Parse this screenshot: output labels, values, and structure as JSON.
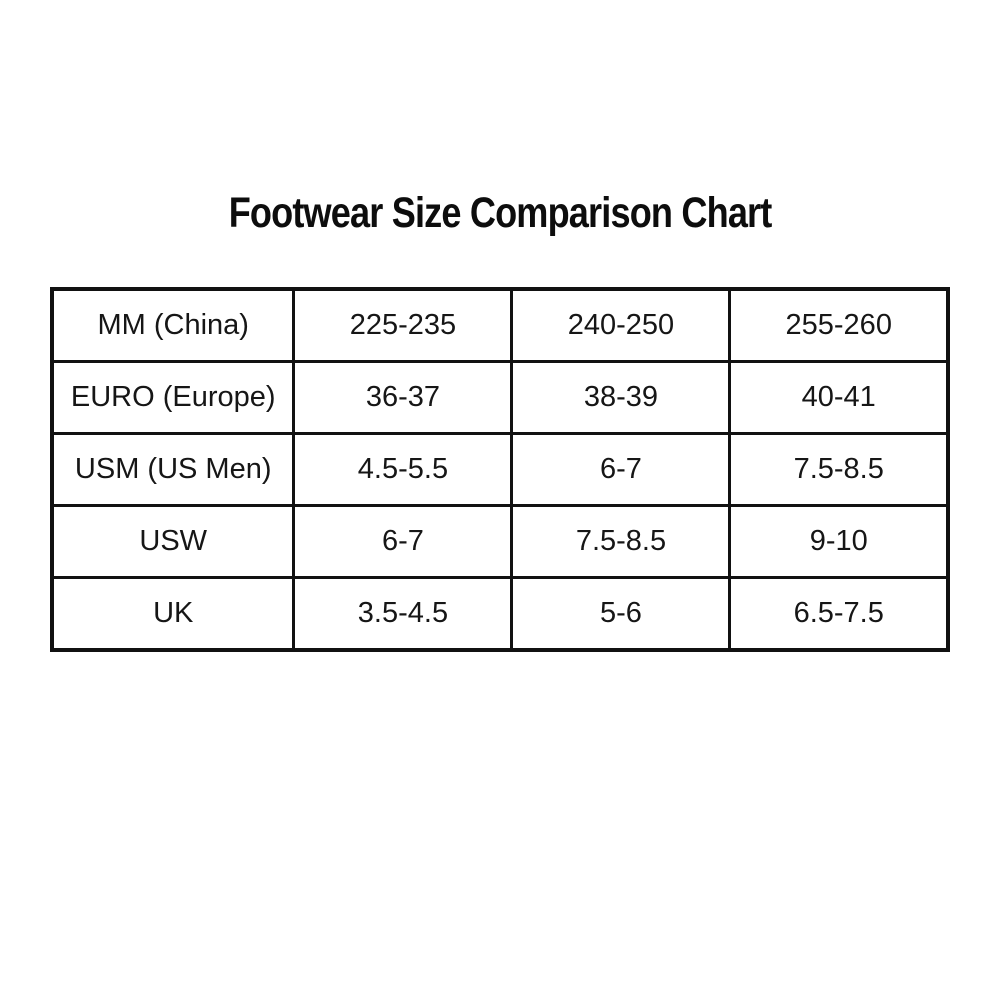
{
  "header": {
    "title": "Footwear Size Comparison Chart"
  },
  "colors": {
    "background": "#ffffff",
    "border": "#111111",
    "text": "#141414"
  },
  "chart_data": {
    "type": "table",
    "title": "Footwear Size Comparison Chart",
    "grid": "on",
    "columns_per_row": 4,
    "rows": [
      {
        "label": "MM (China)",
        "values": [
          "225-235",
          "240-250",
          "255-260"
        ]
      },
      {
        "label": "EURO (Europe)",
        "values": [
          "36-37",
          "38-39",
          "40-41"
        ]
      },
      {
        "label": "USM (US Men)",
        "values": [
          "4.5-5.5",
          "6-7",
          "7.5-8.5"
        ]
      },
      {
        "label": "USW",
        "values": [
          "6-7",
          "7.5-8.5",
          "9-10"
        ]
      },
      {
        "label": "UK",
        "values": [
          "3.5-4.5",
          "5-6",
          "6.5-7.5"
        ]
      }
    ]
  }
}
